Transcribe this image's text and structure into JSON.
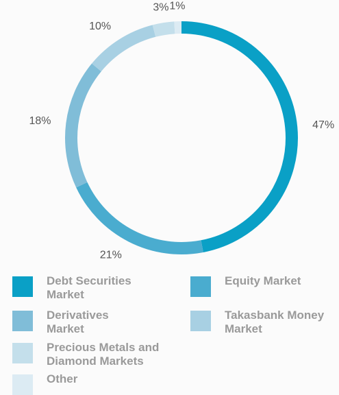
{
  "chart_data": {
    "type": "donut",
    "categories": [
      "Debt Securities Market",
      "Equity Market",
      "Derivatives Market",
      "Takasbank Money Market",
      "Precious Metals and Diamond Markets",
      "Other"
    ],
    "values": [
      47,
      21,
      18,
      10,
      3,
      1
    ],
    "value_labels": [
      "47%",
      "21%",
      "18%",
      "10%",
      "3%",
      "1%"
    ],
    "colors": [
      "#0aa0c6",
      "#4aaccf",
      "#80bdd8",
      "#a8d0e3",
      "#c4dfeb",
      "#dcebf3"
    ]
  }
}
